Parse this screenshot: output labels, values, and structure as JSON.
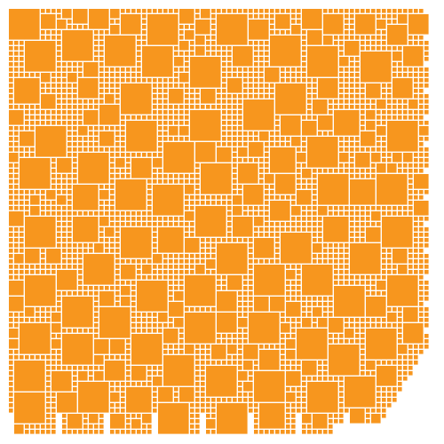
{
  "colors": {
    "background": "#ffffff",
    "tile": "#f7961e"
  },
  "mosaic": {
    "description_visible_text": "",
    "pattern": "packed-squares",
    "edge": "ragged-bottom-right"
  }
}
